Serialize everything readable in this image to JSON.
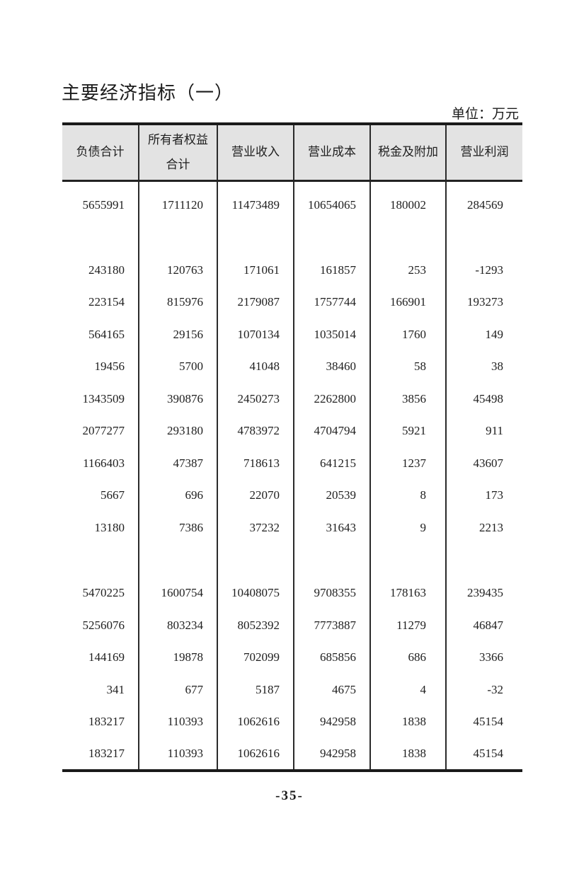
{
  "title": "主要经济指标（一）",
  "unit_label": "单位：万元",
  "page_number": "-35-",
  "colors": {
    "header_background": "#e3e3e3",
    "border": "#2a2a2a",
    "text": "#1e1e1e"
  },
  "table": {
    "columns": [
      "负债合计",
      "所有者权益\n合计",
      "营业收入",
      "营业成本",
      "税金及附加",
      "营业利润"
    ],
    "rows": [
      [
        "5655991",
        "1711120",
        "11473489",
        "10654065",
        "180002",
        "284569"
      ],
      [
        "",
        "",
        "",
        "",
        "",
        ""
      ],
      [
        "243180",
        "120763",
        "171061",
        "161857",
        "253",
        "-1293"
      ],
      [
        "223154",
        "815976",
        "2179087",
        "1757744",
        "166901",
        "193273"
      ],
      [
        "564165",
        "29156",
        "1070134",
        "1035014",
        "1760",
        "149"
      ],
      [
        "19456",
        "5700",
        "41048",
        "38460",
        "58",
        "38"
      ],
      [
        "1343509",
        "390876",
        "2450273",
        "2262800",
        "3856",
        "45498"
      ],
      [
        "2077277",
        "293180",
        "4783972",
        "4704794",
        "5921",
        "911"
      ],
      [
        "1166403",
        "47387",
        "718613",
        "641215",
        "1237",
        "43607"
      ],
      [
        "5667",
        "696",
        "22070",
        "20539",
        "8",
        "173"
      ],
      [
        "13180",
        "7386",
        "37232",
        "31643",
        "9",
        "2213"
      ],
      [
        "",
        "",
        "",
        "",
        "",
        ""
      ],
      [
        "5470225",
        "1600754",
        "10408075",
        "9708355",
        "178163",
        "239435"
      ],
      [
        "5256076",
        "803234",
        "8052392",
        "7773887",
        "11279",
        "46847"
      ],
      [
        "144169",
        "19878",
        "702099",
        "685856",
        "686",
        "3366"
      ],
      [
        "341",
        "677",
        "5187",
        "4675",
        "4",
        "-32"
      ],
      [
        "183217",
        "110393",
        "1062616",
        "942958",
        "1838",
        "45154"
      ],
      [
        "183217",
        "110393",
        "1062616",
        "942958",
        "1838",
        "45154"
      ]
    ]
  }
}
